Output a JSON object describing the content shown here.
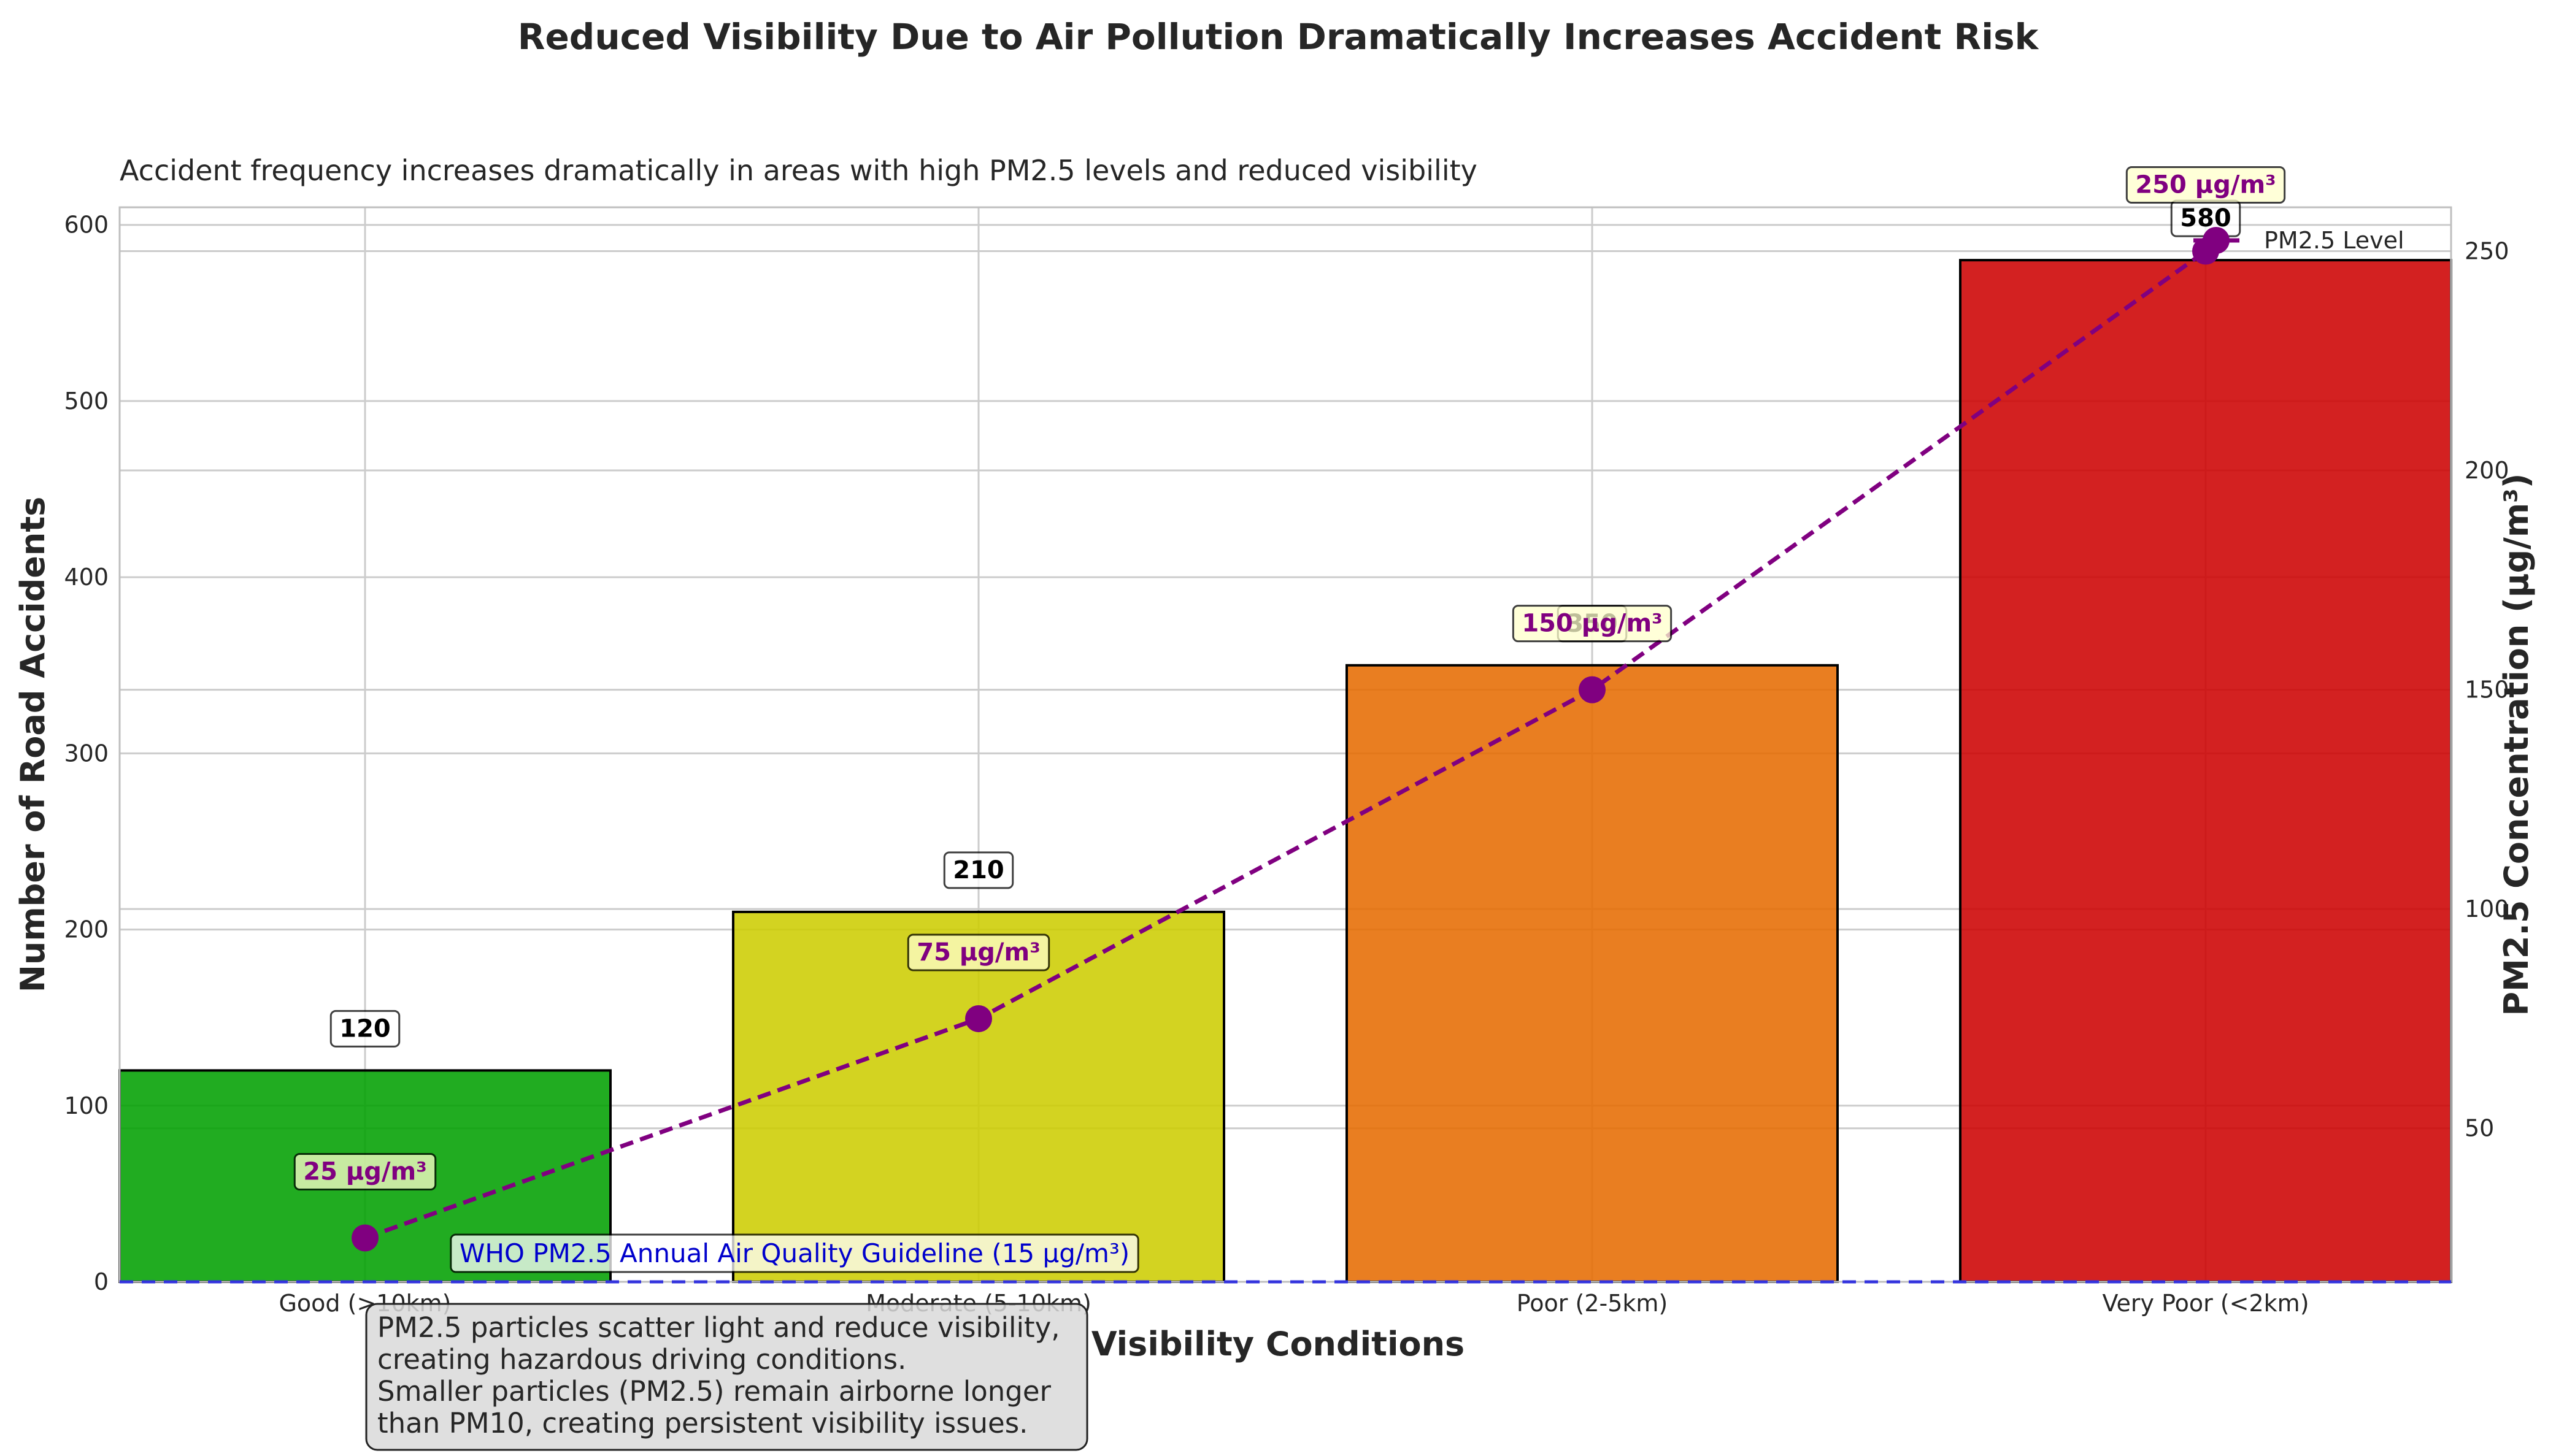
{
  "chart_data": {
    "type": "bar",
    "title": "Reduced Visibility Due to Air Pollution Dramatically Increases Accident Risk",
    "subtitle": "Accident frequency increases dramatically in areas with high PM2.5 levels and reduced visibility",
    "xlabel": "Visibility Conditions",
    "ylabel": "Number of Road Accidents",
    "y2label": "PM2.5 Concentration (μg/m³)",
    "categories": [
      "Good (>10km)",
      "Moderate (5-10km)",
      "Poor (2-5km)",
      "Very Poor (<2km)"
    ],
    "series": [
      {
        "values": [
          120,
          210,
          350,
          580
        ],
        "colors": [
          "#00a000",
          "#cccc00",
          "#e66b00",
          "#cc0000"
        ],
        "value_labels": [
          "120",
          "210",
          "350",
          "580"
        ]
      },
      {
        "name": "PM2.5 Level",
        "axis": "right",
        "style": "dashed-line-with-markers",
        "color": "#800080",
        "values": [
          25,
          75,
          150,
          250
        ],
        "value_labels": [
          "25 μg/m³",
          "75 μg/m³",
          "150 μg/m³",
          "250 μg/m³"
        ]
      }
    ],
    "ylim": [
      0,
      610
    ],
    "y2lim": [
      15,
      260
    ],
    "yticks": [
      "0",
      "100",
      "200",
      "300",
      "400",
      "500",
      "600"
    ],
    "y2ticks": [
      "50",
      "100",
      "150",
      "200",
      "250"
    ],
    "grid": true,
    "legend": "top-right",
    "reference_line": {
      "axis": "right",
      "value": 15,
      "label": "WHO PM2.5 Annual Air Quality Guideline (15 μg/m³)",
      "color": "#3333dd"
    },
    "annotation": [
      "PM2.5 particles scatter light and reduce visibility,",
      "creating hazardous driving conditions.",
      "Smaller particles (PM2.5) remain airborne longer",
      "than PM10, creating persistent visibility issues."
    ]
  }
}
